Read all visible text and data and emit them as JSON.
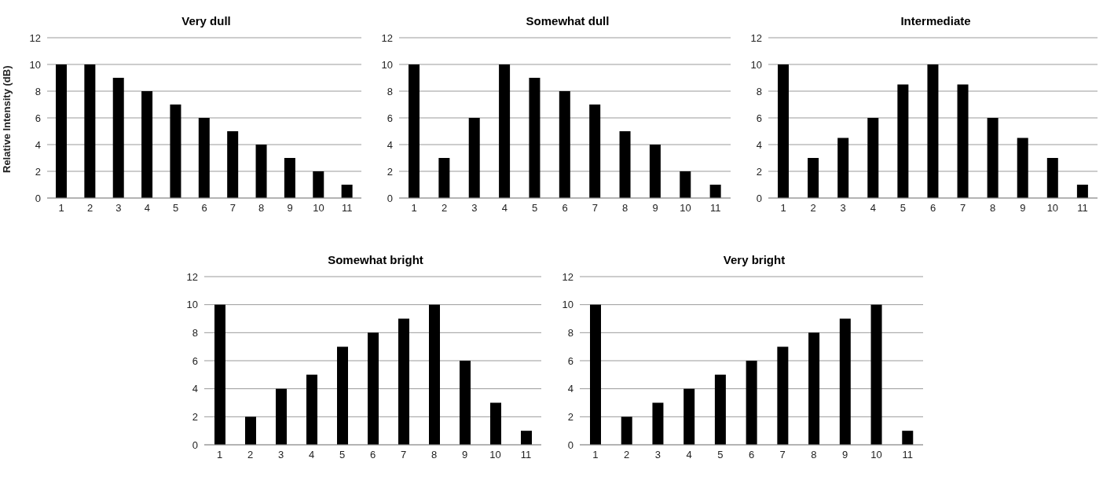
{
  "chart_data": [
    {
      "type": "bar",
      "title": "Very dull",
      "ylabel": "Relative Intensity (dB)",
      "categories": [
        "1",
        "2",
        "3",
        "4",
        "5",
        "6",
        "7",
        "8",
        "9",
        "10",
        "11"
      ],
      "values": [
        10,
        10,
        9,
        8,
        7,
        6,
        5,
        4,
        3,
        2,
        1
      ],
      "color": "#000000",
      "ylim": [
        0,
        12
      ],
      "yticks": [
        0,
        2,
        4,
        6,
        8,
        10,
        12
      ],
      "grid": "y"
    },
    {
      "type": "bar",
      "title": "Somewhat dull",
      "categories": [
        "1",
        "2",
        "3",
        "4",
        "5",
        "6",
        "7",
        "8",
        "9",
        "10",
        "11"
      ],
      "values": [
        10,
        3,
        6,
        10,
        9,
        8,
        7,
        5,
        4,
        2,
        1
      ],
      "color": "#000000",
      "ylim": [
        0,
        12
      ],
      "yticks": [
        0,
        2,
        4,
        6,
        8,
        10,
        12
      ],
      "grid": "y"
    },
    {
      "type": "bar",
      "title": "Intermediate",
      "categories": [
        "1",
        "2",
        "3",
        "4",
        "5",
        "6",
        "7",
        "8",
        "9",
        "10",
        "11"
      ],
      "values": [
        10,
        3,
        4.5,
        6,
        8.5,
        10,
        8.5,
        6,
        4.5,
        3,
        1
      ],
      "color": "#000000",
      "ylim": [
        0,
        12
      ],
      "yticks": [
        0,
        2,
        4,
        6,
        8,
        10,
        12
      ],
      "grid": "y"
    },
    {
      "type": "bar",
      "title": "Somewhat bright",
      "categories": [
        "1",
        "2",
        "3",
        "4",
        "5",
        "6",
        "7",
        "8",
        "9",
        "10",
        "11"
      ],
      "values": [
        10,
        2,
        4,
        5,
        7,
        8,
        9,
        10,
        6,
        3,
        1
      ],
      "color": "#000000",
      "ylim": [
        0,
        12
      ],
      "yticks": [
        0,
        2,
        4,
        6,
        8,
        10,
        12
      ],
      "grid": "y"
    },
    {
      "type": "bar",
      "title": "Very bright",
      "categories": [
        "1",
        "2",
        "3",
        "4",
        "5",
        "6",
        "7",
        "8",
        "9",
        "10",
        "11"
      ],
      "values": [
        10,
        2,
        3,
        4,
        5,
        6,
        7,
        8,
        9,
        10,
        1
      ],
      "color": "#000000",
      "ylim": [
        0,
        12
      ],
      "yticks": [
        0,
        2,
        4,
        6,
        8,
        10,
        12
      ],
      "grid": "y"
    }
  ]
}
